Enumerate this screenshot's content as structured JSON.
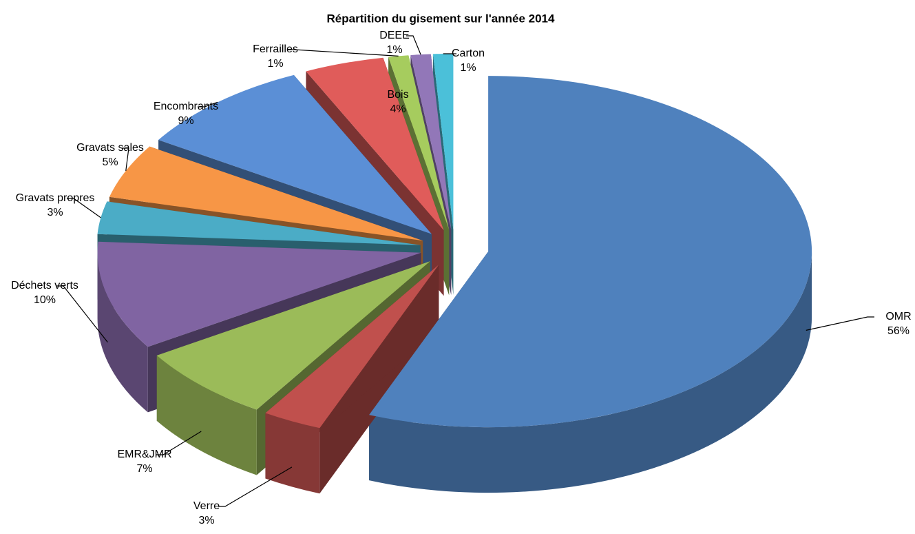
{
  "chart_data": {
    "type": "pie3d",
    "title": "Répartition du gisement sur l'année 2014",
    "categories": [
      "OMR",
      "Verre",
      "EMR&JMR",
      "Déchets verts",
      "Gravats propres",
      "Gravats sales",
      "Encombrants",
      "Bois",
      "Ferrailles",
      "DEEE",
      "Carton"
    ],
    "values": [
      56,
      3,
      7,
      10,
      3,
      5,
      9,
      4,
      1,
      1,
      1
    ],
    "value_labels": [
      "56%",
      "3%",
      "7%",
      "10%",
      "3%",
      "5%",
      "9%",
      "4%",
      "1%",
      "1%",
      "1%"
    ],
    "colors": [
      "#4f81bd",
      "#c0504d",
      "#9bbb59",
      "#8064a2",
      "#4bacc6",
      "#f79646",
      "#5b8fd6",
      "#e05c5a",
      "#a6cc5e",
      "#9277b8",
      "#4bc0d9"
    ]
  }
}
